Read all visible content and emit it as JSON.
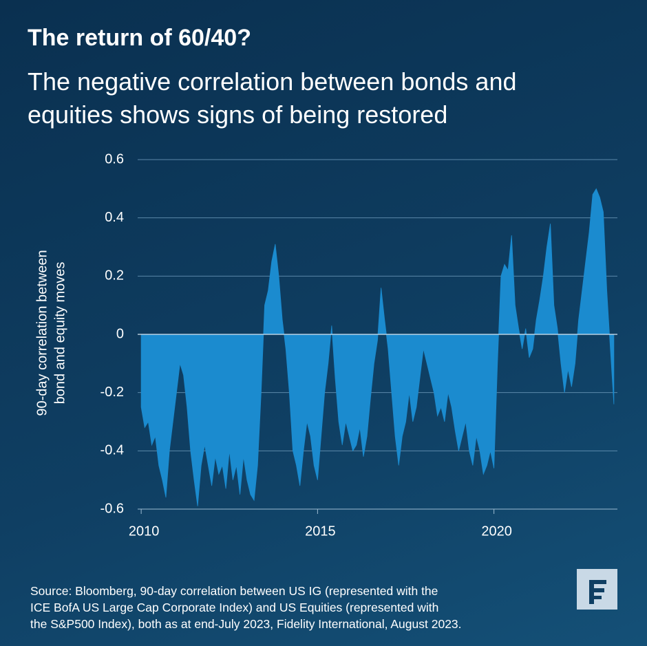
{
  "chart_data": {
    "type": "area",
    "title": "The return of 60/40?",
    "subtitle": [
      "The negative correlation between bonds and",
      "equities shows signs of being restored"
    ],
    "ylabel": [
      "90-day correlation between",
      "bond and equity moves"
    ],
    "source": [
      "Source: Bloomberg, 90-day correlation between US IG (represented with the",
      "ICE BofA US Large Cap Corporate Index) and US Equities (represented with",
      "the S&P500 Index), both as at end-July 2023, Fidelity International, August 2023."
    ],
    "color": "#1b8bcf",
    "grid": true,
    "xlim": [
      2009.9,
      2023.5
    ],
    "xticks": [
      2010,
      2015,
      2020
    ],
    "ylim": [
      -0.6,
      0.6
    ],
    "yticks": [
      0.6,
      0.4,
      0.2,
      0,
      -0.2,
      -0.4,
      -0.6
    ],
    "x": [
      2010.0,
      2010.1,
      2010.2,
      2010.3,
      2010.4,
      2010.5,
      2010.6,
      2010.7,
      2010.8,
      2010.9,
      2011.0,
      2011.1,
      2011.2,
      2011.3,
      2011.4,
      2011.5,
      2011.6,
      2011.7,
      2011.8,
      2011.9,
      2012.0,
      2012.1,
      2012.2,
      2012.3,
      2012.4,
      2012.5,
      2012.6,
      2012.7,
      2012.8,
      2012.9,
      2013.0,
      2013.1,
      2013.2,
      2013.3,
      2013.4,
      2013.5,
      2013.6,
      2013.7,
      2013.8,
      2013.9,
      2014.0,
      2014.1,
      2014.2,
      2014.3,
      2014.4,
      2014.5,
      2014.6,
      2014.7,
      2014.8,
      2014.9,
      2015.0,
      2015.1,
      2015.2,
      2015.3,
      2015.4,
      2015.5,
      2015.6,
      2015.7,
      2015.8,
      2015.9,
      2016.0,
      2016.1,
      2016.2,
      2016.3,
      2016.4,
      2016.5,
      2016.6,
      2016.7,
      2016.8,
      2016.9,
      2017.0,
      2017.1,
      2017.2,
      2017.3,
      2017.4,
      2017.5,
      2017.6,
      2017.7,
      2017.8,
      2017.9,
      2018.0,
      2018.1,
      2018.2,
      2018.3,
      2018.4,
      2018.5,
      2018.6,
      2018.7,
      2018.8,
      2018.9,
      2019.0,
      2019.1,
      2019.2,
      2019.3,
      2019.4,
      2019.5,
      2019.6,
      2019.7,
      2019.8,
      2019.9,
      2020.0,
      2020.1,
      2020.2,
      2020.3,
      2020.4,
      2020.5,
      2020.6,
      2020.7,
      2020.8,
      2020.9,
      2021.0,
      2021.1,
      2021.2,
      2021.3,
      2021.4,
      2021.5,
      2021.6,
      2021.7,
      2021.8,
      2021.9,
      2022.0,
      2022.1,
      2022.2,
      2022.3,
      2022.4,
      2022.5,
      2022.6,
      2022.7,
      2022.8,
      2022.9,
      2023.0,
      2023.1,
      2023.2,
      2023.3,
      2023.4
    ],
    "values": [
      -0.25,
      -0.32,
      -0.3,
      -0.38,
      -0.35,
      -0.45,
      -0.5,
      -0.56,
      -0.4,
      -0.3,
      -0.2,
      -0.1,
      -0.14,
      -0.25,
      -0.4,
      -0.5,
      -0.59,
      -0.45,
      -0.38,
      -0.45,
      -0.52,
      -0.42,
      -0.48,
      -0.45,
      -0.53,
      -0.4,
      -0.5,
      -0.45,
      -0.55,
      -0.42,
      -0.5,
      -0.55,
      -0.57,
      -0.45,
      -0.2,
      0.1,
      0.15,
      0.25,
      0.31,
      0.2,
      0.05,
      -0.05,
      -0.2,
      -0.4,
      -0.45,
      -0.52,
      -0.4,
      -0.3,
      -0.35,
      -0.45,
      -0.5,
      -0.35,
      -0.2,
      -0.1,
      0.03,
      -0.15,
      -0.3,
      -0.38,
      -0.3,
      -0.35,
      -0.4,
      -0.38,
      -0.32,
      -0.42,
      -0.35,
      -0.22,
      -0.1,
      -0.02,
      0.16,
      0.05,
      -0.05,
      -0.2,
      -0.35,
      -0.45,
      -0.35,
      -0.3,
      -0.2,
      -0.3,
      -0.25,
      -0.15,
      -0.05,
      -0.1,
      -0.15,
      -0.2,
      -0.28,
      -0.25,
      -0.3,
      -0.2,
      -0.25,
      -0.33,
      -0.4,
      -0.35,
      -0.3,
      -0.4,
      -0.45,
      -0.35,
      -0.4,
      -0.48,
      -0.45,
      -0.4,
      -0.46,
      -0.1,
      0.2,
      0.24,
      0.22,
      0.34,
      0.1,
      0.02,
      -0.05,
      0.02,
      -0.08,
      -0.05,
      0.05,
      0.12,
      0.2,
      0.3,
      0.38,
      0.1,
      0.02,
      -0.1,
      -0.2,
      -0.12,
      -0.18,
      -0.1,
      0.05,
      0.15,
      0.25,
      0.35,
      0.48,
      0.5,
      0.47,
      0.42,
      0.15,
      -0.05,
      -0.24
    ]
  }
}
